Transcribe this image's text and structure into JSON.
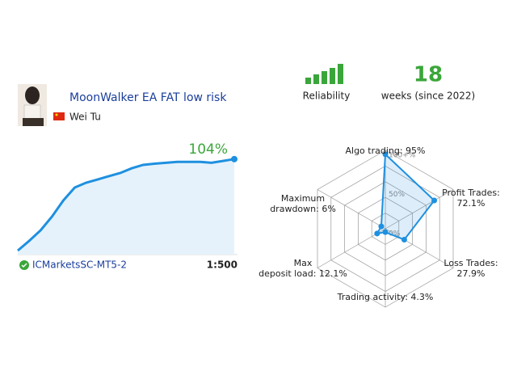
{
  "signal": {
    "title": "MoonWalker EA FAT low risk",
    "author": "Wei Tu",
    "broker": "ICMarketsSC-MT5-2",
    "leverage": "1:500"
  },
  "reliability": {
    "label": "Reliability"
  },
  "weeks": {
    "value": "18",
    "label": "weeks (since 2022)"
  },
  "growth_chart": {
    "type": "area",
    "color": "#1e90e0",
    "values": [
      4.4,
      15,
      26.4,
      41.4,
      59,
      73,
      78.3,
      81.8,
      85.4,
      88.9,
      94,
      97.7,
      99,
      100,
      101,
      101,
      101,
      100,
      102,
      104
    ],
    "value_labels": [
      null,
      null,
      null,
      null,
      null,
      null,
      null,
      null,
      null,
      null,
      null,
      null,
      null,
      null,
      null,
      null,
      null,
      null,
      null,
      "104%"
    ],
    "ylim": [
      0,
      110
    ]
  },
  "radar": {
    "type": "radar",
    "color": "#1e90e0",
    "categories": [
      "Algo trading:",
      "Profit Trades:",
      "Loss Trades:",
      "Trading activity:",
      "Max deposit load:",
      "Maximum drawdown:"
    ],
    "values": [
      95,
      72.1,
      27.9,
      4.3,
      12.1,
      6
    ],
    "value_labels": [
      "95%",
      "72.1%",
      "27.9%",
      "4.3%",
      "12.1%",
      "6%"
    ],
    "rlim": [
      0,
      100
    ],
    "rticks": [
      {
        "value": 100,
        "label": "100+%"
      },
      {
        "value": 50,
        "label": "50%"
      },
      {
        "value": 0,
        "label": "0%"
      }
    ]
  }
}
